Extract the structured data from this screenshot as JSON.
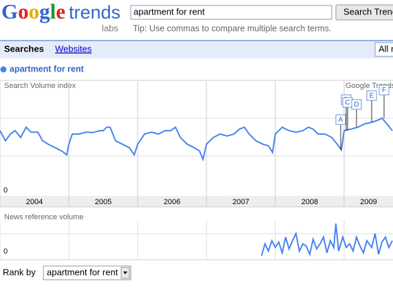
{
  "header": {
    "logo": "Google",
    "product": "trends",
    "labs": "labs",
    "search_query": "apartment for rent",
    "search_button": "Search Trends",
    "tip": "Tip: Use commas to compare multiple search terms."
  },
  "tabs": {
    "items": [
      "Searches",
      "Websites"
    ],
    "region": "All regions"
  },
  "chart_data": [
    {
      "type": "line",
      "title": "Search Volume index",
      "watermark": "Google Trends",
      "x": [
        2004.0,
        2004.08,
        2004.15,
        2004.22,
        2004.3,
        2004.38,
        2004.45,
        2004.55,
        2004.62,
        2004.7,
        2004.8,
        2004.9,
        2004.97,
        2005.0,
        2005.05,
        2005.15,
        2005.25,
        2005.35,
        2005.45,
        2005.5,
        2005.55,
        2005.6,
        2005.68,
        2005.78,
        2005.88,
        2005.95,
        2006.0,
        2006.1,
        2006.2,
        2006.3,
        2006.4,
        2006.48,
        2006.55,
        2006.62,
        2006.72,
        2006.82,
        2006.9,
        2006.95,
        2007.0,
        2007.1,
        2007.2,
        2007.3,
        2007.4,
        2007.48,
        2007.55,
        2007.62,
        2007.72,
        2007.82,
        2007.9,
        2007.96,
        2008.0,
        2008.1,
        2008.2,
        2008.3,
        2008.4,
        2008.48,
        2008.55,
        2008.62,
        2008.72,
        2008.82,
        2008.9,
        2008.96,
        2009.0,
        2009.1,
        2009.2,
        2009.3,
        2009.4,
        2009.48,
        2009.55,
        2009.62,
        2009.7
      ],
      "series": [
        {
          "name": "apartment for rent",
          "color": "#4684ee",
          "values": [
            1.69,
            1.42,
            1.6,
            1.69,
            1.51,
            1.78,
            1.65,
            1.65,
            1.42,
            1.33,
            1.24,
            1.15,
            1.05,
            1.33,
            1.6,
            1.6,
            1.65,
            1.64,
            1.69,
            1.69,
            1.78,
            1.78,
            1.42,
            1.33,
            1.24,
            1.05,
            1.33,
            1.6,
            1.65,
            1.6,
            1.69,
            1.69,
            1.78,
            1.51,
            1.33,
            1.24,
            1.15,
            0.93,
            1.33,
            1.51,
            1.6,
            1.55,
            1.6,
            1.73,
            1.78,
            1.6,
            1.42,
            1.33,
            1.29,
            1.11,
            1.6,
            1.78,
            1.69,
            1.65,
            1.69,
            1.78,
            1.73,
            1.6,
            1.6,
            1.51,
            1.33,
            1.18,
            1.69,
            1.73,
            1.78,
            1.87,
            1.91,
            1.96,
            2.02,
            1.87,
            1.69
          ]
        }
      ],
      "xlim": [
        2004,
        2009.71
      ],
      "xticks": [
        2004,
        2005,
        2006,
        2007,
        2008,
        2009
      ],
      "ylim": [
        0,
        3
      ],
      "yticks": [
        0
      ],
      "annotations": [
        {
          "label": "A",
          "x": 2008.95
        },
        {
          "label": "B",
          "x": 2009.03
        },
        {
          "label": "C",
          "x": 2009.05
        },
        {
          "label": "D",
          "x": 2009.18
        },
        {
          "label": "E",
          "x": 2009.4
        },
        {
          "label": "F",
          "x": 2009.58
        }
      ]
    },
    {
      "type": "line",
      "title": "News reference volume",
      "x": [
        2007.8,
        2007.85,
        2007.9,
        2007.95,
        2008.0,
        2008.05,
        2008.1,
        2008.15,
        2008.2,
        2008.25,
        2008.3,
        2008.35,
        2008.4,
        2008.45,
        2008.5,
        2008.55,
        2008.6,
        2008.65,
        2008.7,
        2008.75,
        2008.8,
        2008.85,
        2008.88,
        2008.92,
        2008.98,
        2009.03,
        2009.08,
        2009.13,
        2009.18,
        2009.23,
        2009.28,
        2009.33,
        2009.4,
        2009.45,
        2009.5,
        2009.55,
        2009.6,
        2009.65,
        2009.7
      ],
      "series": [
        {
          "color": "#4684ee",
          "values": [
            0,
            0.33,
            0.13,
            0.42,
            0.23,
            0.38,
            0.08,
            0.52,
            0.19,
            0.42,
            0.62,
            0.13,
            0.33,
            0.27,
            0.04,
            0.46,
            0.19,
            0.33,
            0.52,
            0.08,
            0.42,
            0.23,
            0.9,
            0.13,
            0.52,
            0.23,
            0.33,
            0.13,
            0.52,
            0.27,
            0.08,
            0.42,
            0.23,
            0.62,
            0.04,
            0.38,
            0.52,
            0.23,
            0.42
          ]
        }
      ],
      "xlim": [
        2004,
        2009.71
      ],
      "ylim": [
        0,
        1
      ],
      "yticks": [
        0
      ]
    }
  ],
  "rank_by": {
    "label": "Rank by",
    "value": "apartment for rent"
  }
}
